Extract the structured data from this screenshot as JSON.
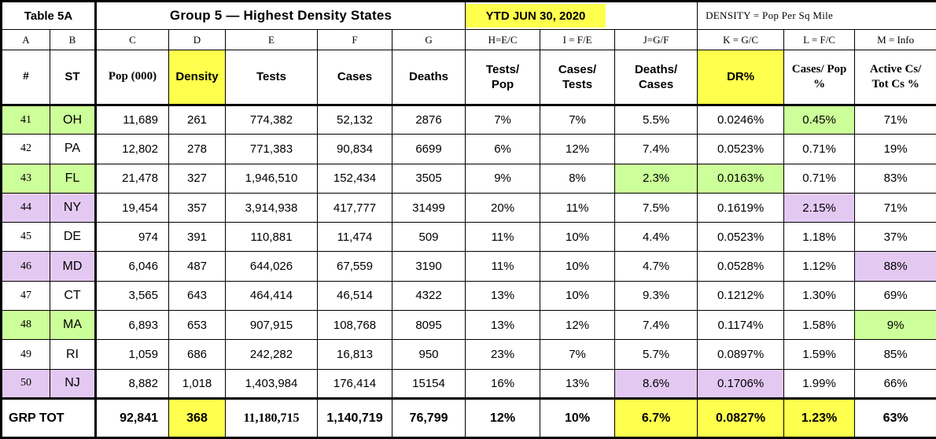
{
  "palette": {
    "yellow": "#ffff4d",
    "green": "#ccff99",
    "purple": "#e3c9f2",
    "table_border": "#000000"
  },
  "header": {
    "table_label": "Table 5A",
    "group_title": "Group 5 — Highest Density States",
    "ytd_label": "YTD JUN 30, 2020",
    "density_note": "DENSITY = Pop Per Sq Mile"
  },
  "chart_data": {
    "type": "table",
    "title": "Group 5 — Highest Density States, YTD JUN 30, 2020",
    "columns": {
      "letters": [
        "A",
        "B",
        "C",
        "D",
        "E",
        "F",
        "G",
        "H=E/C",
        "I = F/E",
        "J=G/F",
        "K = G/C",
        "L = F/C",
        "M = Info"
      ],
      "names": [
        "#",
        "ST",
        "Pop (000)",
        "Density",
        "Tests",
        "Cases",
        "Deaths",
        "Tests/\nPop",
        "Cases/\nTests",
        "Deaths/\nCases",
        "DR%",
        "Cases/ Pop\n%",
        "Active Cs/\nTot Cs %"
      ]
    },
    "rows": [
      {
        "num": "41",
        "st": "OH",
        "pop": "11,689",
        "density": "261",
        "tests": "774,382",
        "cases": "52,132",
        "deaths": "2876",
        "tests_pop": "7%",
        "cases_tests": "7%",
        "deaths_cases": "5.5%",
        "dr": "0.0246%",
        "cases_pop": "0.45%",
        "active": "71%",
        "tint": "green",
        "cell_tints": {
          "cases_pop": "green"
        }
      },
      {
        "num": "42",
        "st": "PA",
        "pop": "12,802",
        "density": "278",
        "tests": "771,383",
        "cases": "90,834",
        "deaths": "6699",
        "tests_pop": "6%",
        "cases_tests": "12%",
        "deaths_cases": "7.4%",
        "dr": "0.0523%",
        "cases_pop": "0.71%",
        "active": "19%",
        "tint": null,
        "cell_tints": {}
      },
      {
        "num": "43",
        "st": "FL",
        "pop": "21,478",
        "density": "327",
        "tests": "1,946,510",
        "cases": "152,434",
        "deaths": "3505",
        "tests_pop": "9%",
        "cases_tests": "8%",
        "deaths_cases": "2.3%",
        "dr": "0.0163%",
        "cases_pop": "0.71%",
        "active": "83%",
        "tint": "green",
        "cell_tints": {
          "deaths_cases": "green",
          "dr": "green"
        }
      },
      {
        "num": "44",
        "st": "NY",
        "pop": "19,454",
        "density": "357",
        "tests": "3,914,938",
        "cases": "417,777",
        "deaths": "31499",
        "tests_pop": "20%",
        "cases_tests": "11%",
        "deaths_cases": "7.5%",
        "dr": "0.1619%",
        "cases_pop": "2.15%",
        "active": "71%",
        "tint": "purple",
        "cell_tints": {
          "cases_pop": "purple"
        }
      },
      {
        "num": "45",
        "st": "DE",
        "pop": "974",
        "density": "391",
        "tests": "110,881",
        "cases": "11,474",
        "deaths": "509",
        "tests_pop": "11%",
        "cases_tests": "10%",
        "deaths_cases": "4.4%",
        "dr": "0.0523%",
        "cases_pop": "1.18%",
        "active": "37%",
        "tint": null,
        "cell_tints": {}
      },
      {
        "num": "46",
        "st": "MD",
        "pop": "6,046",
        "density": "487",
        "tests": "644,026",
        "cases": "67,559",
        "deaths": "3190",
        "tests_pop": "11%",
        "cases_tests": "10%",
        "deaths_cases": "4.7%",
        "dr": "0.0528%",
        "cases_pop": "1.12%",
        "active": "88%",
        "tint": "purple",
        "cell_tints": {
          "active": "purple"
        }
      },
      {
        "num": "47",
        "st": "CT",
        "pop": "3,565",
        "density": "643",
        "tests": "464,414",
        "cases": "46,514",
        "deaths": "4322",
        "tests_pop": "13%",
        "cases_tests": "10%",
        "deaths_cases": "9.3%",
        "dr": "0.1212%",
        "cases_pop": "1.30%",
        "active": "69%",
        "tint": null,
        "cell_tints": {}
      },
      {
        "num": "48",
        "st": "MA",
        "pop": "6,893",
        "density": "653",
        "tests": "907,915",
        "cases": "108,768",
        "deaths": "8095",
        "tests_pop": "13%",
        "cases_tests": "12%",
        "deaths_cases": "7.4%",
        "dr": "0.1174%",
        "cases_pop": "1.58%",
        "active": "9%",
        "tint": "green",
        "cell_tints": {
          "active": "green"
        }
      },
      {
        "num": "49",
        "st": "RI",
        "pop": "1,059",
        "density": "686",
        "tests": "242,282",
        "cases": "16,813",
        "deaths": "950",
        "tests_pop": "23%",
        "cases_tests": "7%",
        "deaths_cases": "5.7%",
        "dr": "0.0897%",
        "cases_pop": "1.59%",
        "active": "85%",
        "tint": null,
        "cell_tints": {}
      },
      {
        "num": "50",
        "st": "NJ",
        "pop": "8,882",
        "density": "1,018",
        "tests": "1,403,984",
        "cases": "176,414",
        "deaths": "15154",
        "tests_pop": "16%",
        "cases_tests": "13%",
        "deaths_cases": "8.6%",
        "dr": "0.1706%",
        "cases_pop": "1.99%",
        "active": "66%",
        "tint": "purple",
        "cell_tints": {
          "deaths_cases": "purple",
          "dr": "purple"
        }
      }
    ],
    "total": {
      "label": "GRP TOT",
      "pop": "92,841",
      "density": "368",
      "tests": "11,180,715",
      "cases": "1,140,719",
      "deaths": "76,799",
      "tests_pop": "12%",
      "cases_tests": "10%",
      "deaths_cases": "6.7%",
      "dr": "0.0827%",
      "cases_pop": "1.23%",
      "active": "63%"
    }
  }
}
